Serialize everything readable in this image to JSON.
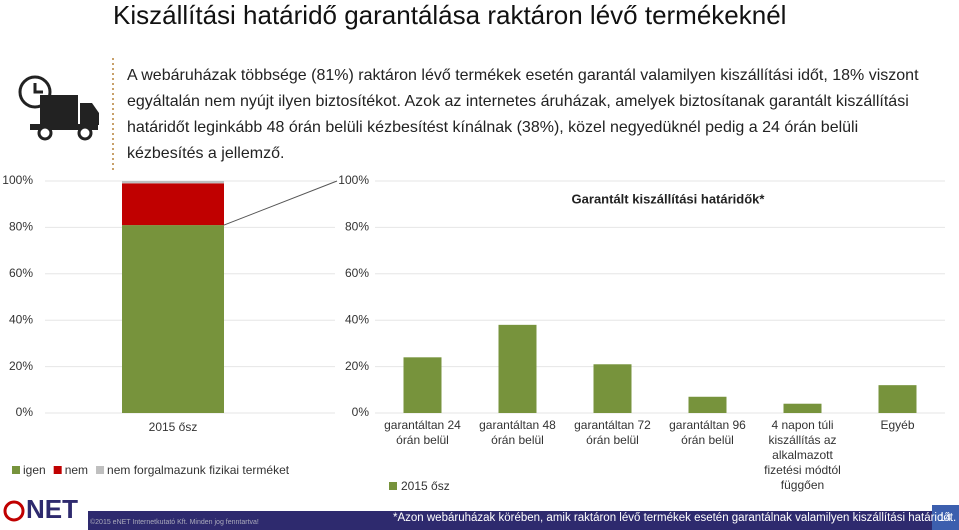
{
  "header": {
    "title": "Kiszállítási határidő garantálása raktáron lévő termékeknél"
  },
  "intro": "A webáruházak többsége (81%) raktáron lévő termékek esetén garantál valamilyen kiszállítási időt, 18% viszont egyáltalán nem nyújt ilyen biztosítékot. Azok az internetes áruházak, amelyek biztosítanak garantált kiszállítási határidőt leginkább 48 órán belüli kézbesítést kínálnak (38%), közel negyedüknél pedig a 24 órán belüli kézbesítés a jellemző.",
  "chart_data": [
    {
      "type": "stacked_bar",
      "categories": [
        "2015 ősz"
      ],
      "series": [
        {
          "name": "igen",
          "color": "#77933c",
          "values": [
            81
          ]
        },
        {
          "name": "nem",
          "color": "#c00000",
          "values": [
            18
          ]
        },
        {
          "name": "nem forgalmazunk fizikai terméket",
          "color": "#bfbfbf",
          "values": [
            1
          ]
        }
      ],
      "ylim": [
        0,
        100
      ],
      "yticks": [
        {
          "value": 0,
          "label": "0%"
        },
        {
          "value": 20,
          "label": "20%"
        },
        {
          "value": 40,
          "label": "40%"
        },
        {
          "value": 60,
          "label": "60%"
        },
        {
          "value": 80,
          "label": "80%"
        },
        {
          "value": 100,
          "label": "100%"
        }
      ],
      "grid": true
    },
    {
      "type": "bar",
      "title": "Garantált kiszállítási határidők*",
      "categories": [
        "garantáltan 24 órán belül",
        "garantáltan 48 órán belül",
        "garantáltan 72 órán belül",
        "garantáltan 96 órán belül",
        "4 napon túli kiszállítás az alkalmazott fizetési módtól függően",
        "Egyéb"
      ],
      "series": [
        {
          "name": "2015 ősz",
          "color": "#77933c",
          "values": [
            24,
            38,
            21,
            7,
            4,
            12
          ]
        }
      ],
      "ylim": [
        0,
        100
      ],
      "yticks": [
        {
          "value": 0,
          "label": "0%"
        },
        {
          "value": 20,
          "label": "20%"
        },
        {
          "value": 40,
          "label": "40%"
        },
        {
          "value": 60,
          "label": "60%"
        },
        {
          "value": 80,
          "label": "80%"
        },
        {
          "value": 100,
          "label": "100%"
        }
      ],
      "grid": true
    }
  ],
  "footer": {
    "logo": "NET",
    "copyright": "©2015 eNET Internetkutató Kft. Minden jog fenntartva!",
    "footnote": "*Azon webáruházak körében, amik raktáron lévő termékek esetén garantálnak valamilyen kiszállítási határidőt.",
    "page_number": "14"
  }
}
